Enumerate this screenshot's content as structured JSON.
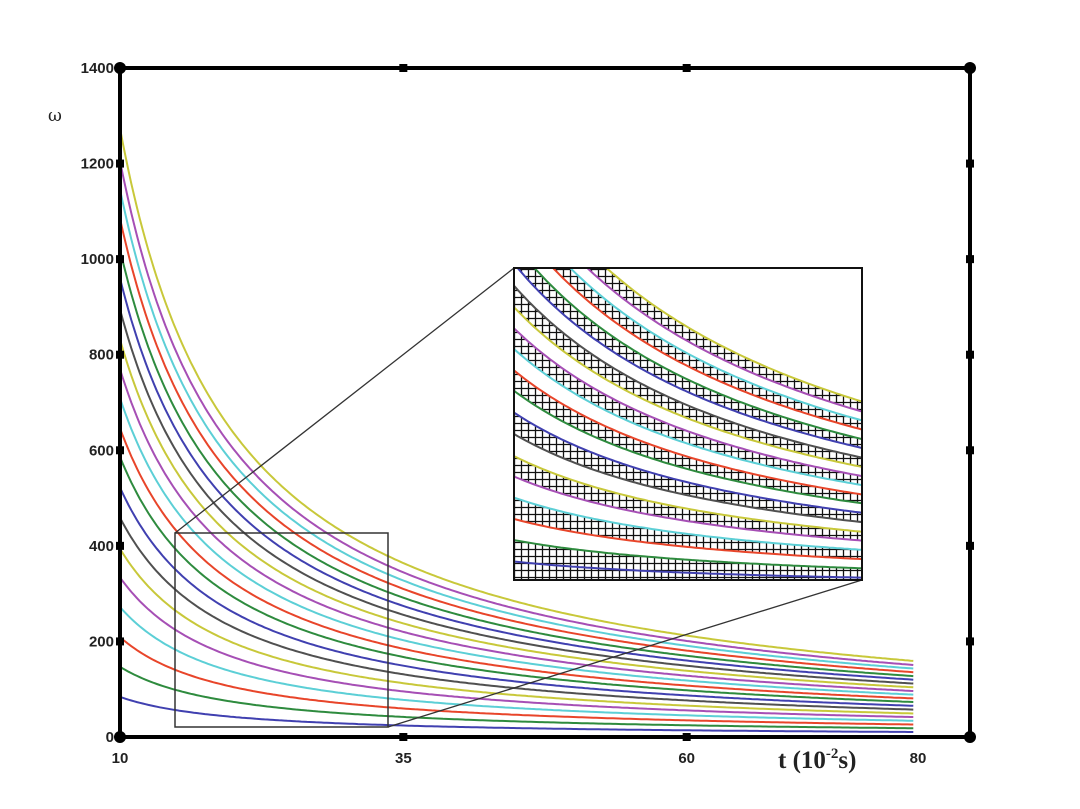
{
  "chart_data": {
    "type": "line",
    "title": "",
    "xlabel": "t (10",
    "xlabel_exp": "-2",
    "xlabel_unit": "s)",
    "ylabel": "ω",
    "xlim": [
      10,
      85
    ],
    "ylim": [
      0,
      1400
    ],
    "xticks": [
      10,
      35,
      60,
      80
    ],
    "yticks": [
      0,
      200,
      400,
      600,
      800,
      1000,
      1200,
      1400
    ],
    "grid": false,
    "legend": "none",
    "model": "omega = omega_at_t10 * 10 / t",
    "x_range": [
      10,
      80
    ],
    "series": [
      {
        "omega_at_t10": 84,
        "color": "#4040b0"
      },
      {
        "omega_at_t10": 147,
        "color": "#2e8b3e"
      },
      {
        "omega_at_t10": 209,
        "color": "#e8452a"
      },
      {
        "omega_at_t10": 272,
        "color": "#5ccfd6"
      },
      {
        "omega_at_t10": 334,
        "color": "#a64fb5"
      },
      {
        "omega_at_t10": 394,
        "color": "#c8c83a"
      },
      {
        "omega_at_t10": 459,
        "color": "#505050"
      },
      {
        "omega_at_t10": 522,
        "color": "#4040b0"
      },
      {
        "omega_at_t10": 586,
        "color": "#2e8b3e"
      },
      {
        "omega_at_t10": 646,
        "color": "#e8452a"
      },
      {
        "omega_at_t10": 709,
        "color": "#5ccfd6"
      },
      {
        "omega_at_t10": 770,
        "color": "#a64fb5"
      },
      {
        "omega_at_t10": 832,
        "color": "#c8c83a"
      },
      {
        "omega_at_t10": 895,
        "color": "#505050"
      },
      {
        "omega_at_t10": 960,
        "color": "#4040b0"
      },
      {
        "omega_at_t10": 1020,
        "color": "#2e8b3e"
      },
      {
        "omega_at_t10": 1085,
        "color": "#e8452a"
      },
      {
        "omega_at_t10": 1146,
        "color": "#5ccfd6"
      },
      {
        "omega_at_t10": 1206,
        "color": "#a64fb5"
      },
      {
        "omega_at_t10": 1274,
        "color": "#c8c83a"
      }
    ],
    "zoom_region": {
      "xlim": [
        14.8,
        34
      ],
      "ylim": [
        20,
        640
      ]
    },
    "inset_style": "crosshatched bands between alternating curve pairs"
  }
}
